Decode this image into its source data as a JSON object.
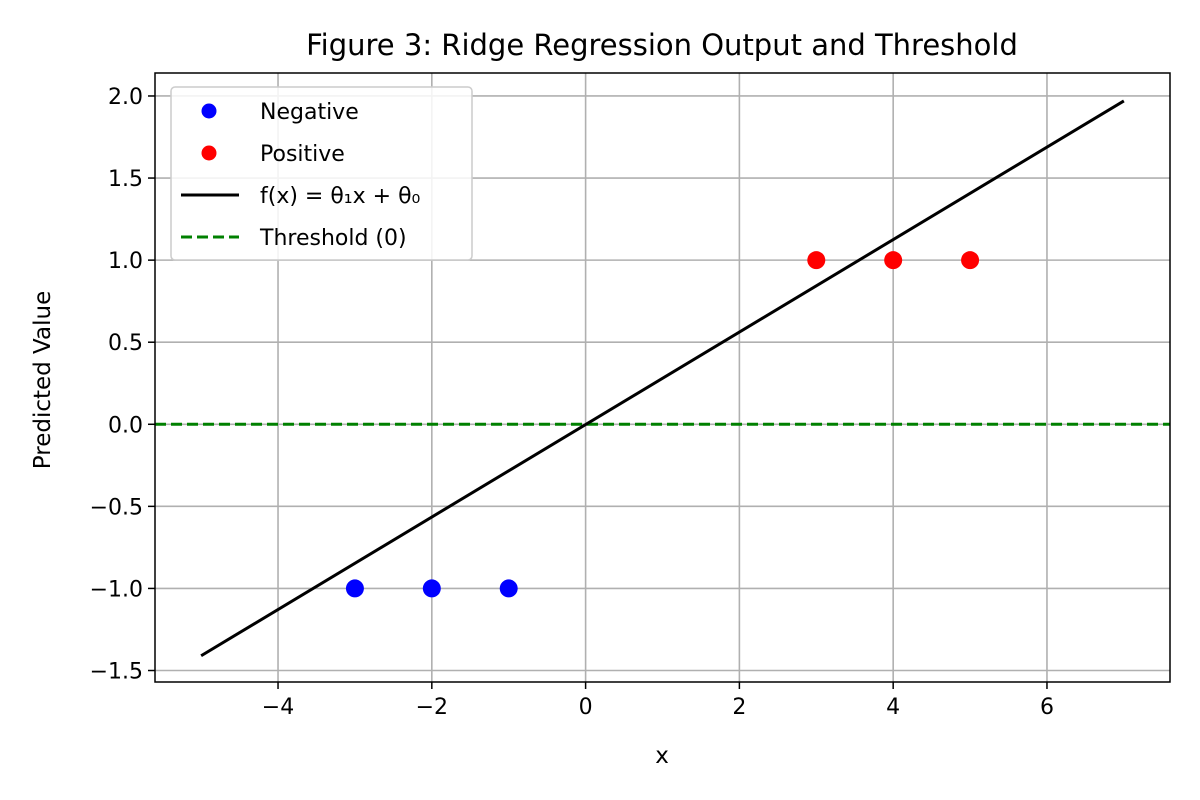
{
  "chart_data": {
    "type": "scatter",
    "title": "Figure 3: Ridge Regression Output and Threshold",
    "xlabel": "x",
    "ylabel": "Predicted Value",
    "xlim": [
      -5.6,
      7.6
    ],
    "ylim": [
      -1.57,
      2.14
    ],
    "xticks": [
      -4,
      -2,
      0,
      2,
      4,
      6
    ],
    "xtick_labels": [
      "−4",
      "−2",
      "0",
      "2",
      "4",
      "6"
    ],
    "yticks": [
      2.0,
      1.5,
      1.0,
      0.5,
      0.0,
      -0.5,
      -1.0,
      -1.5
    ],
    "ytick_labels": [
      "2.0",
      "1.5",
      "1.0",
      "0.5",
      "0.0",
      "−0.5",
      "−1.0",
      "−1.5"
    ],
    "grid": true,
    "legend_position": "top-left",
    "series": [
      {
        "name": "Negative",
        "kind": "scatter",
        "color": "#0000ff",
        "points": [
          [
            -3,
            -1
          ],
          [
            -2,
            -1
          ],
          [
            -1,
            -1
          ]
        ]
      },
      {
        "name": "Positive",
        "kind": "scatter",
        "color": "#ff0000",
        "points": [
          [
            3,
            1
          ],
          [
            4,
            1
          ],
          [
            5,
            1
          ]
        ]
      },
      {
        "name": "f(x) = θ₁x + θ₀",
        "kind": "line",
        "color": "#000000",
        "style": "solid",
        "points": [
          [
            -5,
            -1.41
          ],
          [
            7,
            1.97
          ]
        ]
      },
      {
        "name": "Threshold (0)",
        "kind": "hline",
        "color": "#008000",
        "style": "dashed",
        "y": 0
      }
    ]
  }
}
